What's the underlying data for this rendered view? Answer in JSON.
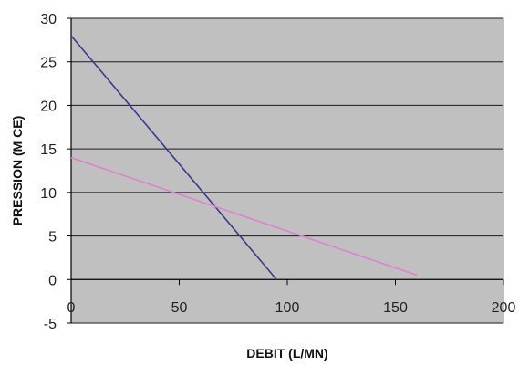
{
  "chart_data": {
    "type": "line",
    "title": "",
    "xlabel": "DEBIT (L/MN)",
    "ylabel": "PRESSION (M CE)",
    "xlim": [
      0,
      200
    ],
    "ylim": [
      -5,
      30
    ],
    "x_ticks": [
      "0",
      "50",
      "100",
      "150",
      "200"
    ],
    "y_ticks": [
      "-5",
      "0",
      "5",
      "10",
      "15",
      "20",
      "25",
      "30"
    ],
    "grid": "horizontal",
    "legend": "none",
    "plot_background": "#c0c0c0",
    "series": [
      {
        "color": "#3a3a8c",
        "x": [
          0,
          95
        ],
        "y": [
          28,
          0
        ]
      },
      {
        "color": "#e080d0",
        "x": [
          0,
          160
        ],
        "y": [
          14,
          0.5
        ]
      }
    ]
  }
}
